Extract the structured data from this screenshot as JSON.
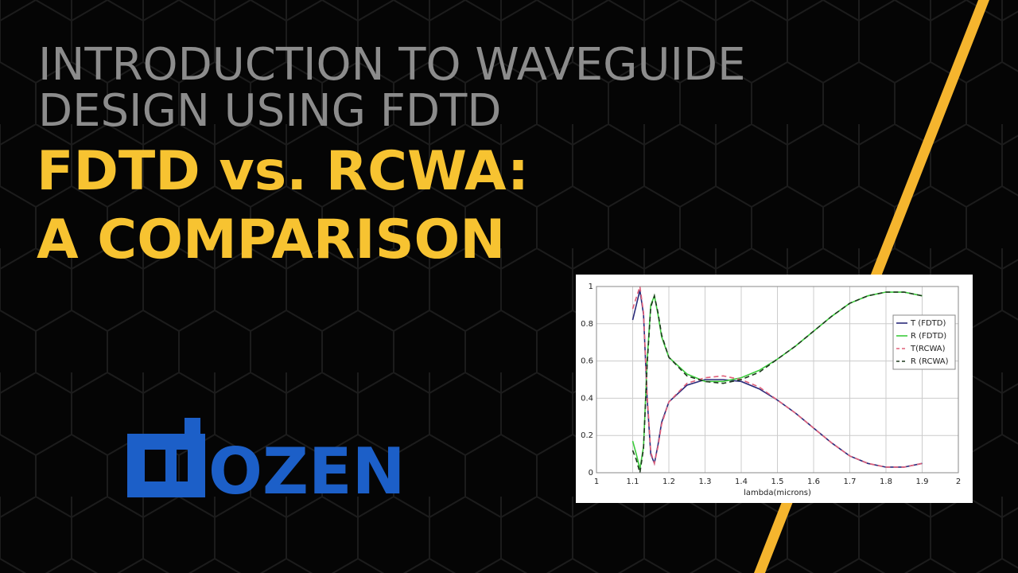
{
  "header": {
    "title_lines": [
      "INTRODUCTION TO WAVEGUIDE",
      "DESIGN USING FDTD"
    ],
    "subtitle_lines": [
      "FDTD vs. RCWA:",
      "A COMPARISON"
    ]
  },
  "logo": {
    "text": "OZEN"
  },
  "chart_data": {
    "type": "line",
    "xlabel": "lambda(microns)",
    "x": [
      1.1,
      1.11,
      1.12,
      1.13,
      1.14,
      1.15,
      1.16,
      1.17,
      1.18,
      1.2,
      1.25,
      1.3,
      1.35,
      1.4,
      1.45,
      1.5,
      1.55,
      1.6,
      1.65,
      1.7,
      1.75,
      1.8,
      1.85,
      1.9
    ],
    "series": [
      {
        "name": "T (FDTD)",
        "color": "#2a2a7a",
        "dashed": false,
        "values": [
          0.82,
          0.9,
          0.98,
          0.85,
          0.4,
          0.1,
          0.05,
          0.15,
          0.27,
          0.38,
          0.47,
          0.5,
          0.5,
          0.49,
          0.45,
          0.39,
          0.32,
          0.24,
          0.16,
          0.09,
          0.05,
          0.03,
          0.03,
          0.05
        ]
      },
      {
        "name": "R (FDTD)",
        "color": "#3ccc3c",
        "dashed": false,
        "values": [
          0.17,
          0.1,
          0.02,
          0.14,
          0.6,
          0.9,
          0.95,
          0.85,
          0.73,
          0.62,
          0.53,
          0.49,
          0.49,
          0.51,
          0.55,
          0.61,
          0.68,
          0.76,
          0.84,
          0.91,
          0.95,
          0.97,
          0.97,
          0.95
        ]
      },
      {
        "name": "T(RCWA)",
        "color": "#e0607a",
        "dashed": true,
        "values": [
          0.88,
          0.94,
          1.0,
          0.86,
          0.42,
          0.11,
          0.05,
          0.14,
          0.26,
          0.38,
          0.48,
          0.51,
          0.52,
          0.5,
          0.46,
          0.39,
          0.32,
          0.24,
          0.16,
          0.09,
          0.05,
          0.03,
          0.03,
          0.05
        ]
      },
      {
        "name": "R (RCWA)",
        "color": "#1e3a1e",
        "dashed": true,
        "values": [
          0.12,
          0.07,
          0.0,
          0.13,
          0.58,
          0.89,
          0.95,
          0.86,
          0.74,
          0.62,
          0.52,
          0.49,
          0.48,
          0.5,
          0.54,
          0.61,
          0.68,
          0.76,
          0.84,
          0.91,
          0.95,
          0.97,
          0.97,
          0.95
        ]
      }
    ],
    "xlim": [
      1,
      2
    ],
    "xticks": [
      1,
      1.1,
      1.2,
      1.3,
      1.4,
      1.5,
      1.6,
      1.7,
      1.8,
      1.9,
      2
    ],
    "ylim": [
      0,
      1
    ],
    "yticks": [
      0,
      0.2,
      0.4,
      0.6,
      0.8,
      1
    ],
    "grid": true,
    "legend": "upper right"
  }
}
